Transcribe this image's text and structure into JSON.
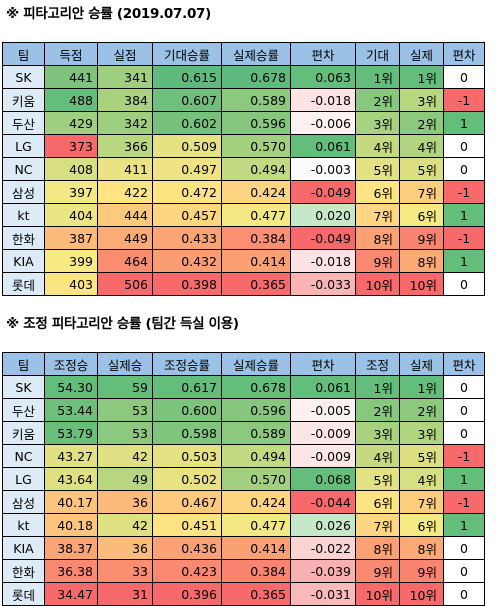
{
  "table1": {
    "title": "※ 피타고리안 승률 (2019.07.07)",
    "headers": [
      "팀",
      "득점",
      "실점",
      "기대승률",
      "실제승률",
      "편차",
      "기대",
      "실제",
      "편차"
    ],
    "rows": [
      [
        "SK",
        "441",
        "341",
        "0.615",
        "0.678",
        "0.063",
        "1위",
        "1위",
        "0"
      ],
      [
        "키움",
        "488",
        "384",
        "0.607",
        "0.589",
        "-0.018",
        "2위",
        "3위",
        "-1"
      ],
      [
        "두산",
        "429",
        "342",
        "0.602",
        "0.596",
        "-0.006",
        "3위",
        "2위",
        "1"
      ],
      [
        "LG",
        "373",
        "366",
        "0.509",
        "0.570",
        "0.061",
        "4위",
        "4위",
        "0"
      ],
      [
        "NC",
        "408",
        "411",
        "0.497",
        "0.494",
        "-0.003",
        "5위",
        "5위",
        "0"
      ],
      [
        "삼성",
        "397",
        "422",
        "0.472",
        "0.424",
        "-0.049",
        "6위",
        "7위",
        "-1"
      ],
      [
        "kt",
        "404",
        "444",
        "0.457",
        "0.477",
        "0.020",
        "7위",
        "6위",
        "1"
      ],
      [
        "한화",
        "387",
        "449",
        "0.433",
        "0.384",
        "-0.049",
        "8위",
        "9위",
        "-1"
      ],
      [
        "KIA",
        "399",
        "464",
        "0.432",
        "0.414",
        "-0.018",
        "9위",
        "8위",
        "1"
      ],
      [
        "롯데",
        "403",
        "506",
        "0.398",
        "0.365",
        "-0.033",
        "10위",
        "10위",
        "0"
      ]
    ],
    "colors": [
      [
        "#ddebf7",
        "#7fc47e",
        "#9fd07f",
        "#5fba7d",
        "#5fba7d",
        "#63be7b",
        "#63be7b",
        "#63be7b",
        "#ffffff"
      ],
      [
        "#ddebf7",
        "#63be7b",
        "#a9d27f",
        "#6ec07c",
        "#8cc87e",
        "#fde3e3",
        "#88c77e",
        "#b9d780",
        "#f8696b"
      ],
      [
        "#ddebf7",
        "#9fd07f",
        "#9dcf7f",
        "#76c27c",
        "#86c67d",
        "#fdf2f2",
        "#a6d17f",
        "#8cc87e",
        "#63be7b"
      ],
      [
        "#ddebf7",
        "#f8696b",
        "#b9d780",
        "#e6e283",
        "#a3d07f",
        "#63be7b",
        "#c4da81",
        "#b1d480",
        "#ffffff"
      ],
      [
        "#ddebf7",
        "#d6df82",
        "#eae283",
        "#f0e383",
        "#c2da81",
        "#fcfcff",
        "#e2e183",
        "#dbdf82",
        "#ffffff"
      ],
      [
        "#ddebf7",
        "#f2e884",
        "#fee482",
        "#fee382",
        "#fed480",
        "#f8696b",
        "#fee382",
        "#fdcd7e",
        "#f8696b"
      ],
      [
        "#ddebf7",
        "#ede583",
        "#fdc97d",
        "#fed680",
        "#f3e884",
        "#c6e7c8",
        "#fed580",
        "#f5e984",
        "#63be7b"
      ],
      [
        "#ddebf7",
        "#fcbb7b",
        "#fbab76",
        "#fba574",
        "#fa8f72",
        "#f8696b",
        "#fba174",
        "#f98470",
        "#f8696b"
      ],
      [
        "#ddebf7",
        "#f9e984",
        "#f98c71",
        "#fa9d73",
        "#fba073",
        "#fde3e3",
        "#f98971",
        "#fbaa76",
        "#63be7b"
      ],
      [
        "#ddebf7",
        "#fbe583",
        "#f8696b",
        "#f8696b",
        "#f8696b",
        "#fab4b4",
        "#f8696b",
        "#f8696b",
        "#ffffff"
      ]
    ]
  },
  "table2": {
    "title": "※ 조정 피타고리안 승률 (팀간 득실 이용)",
    "headers": [
      "팀",
      "조정승",
      "실제승",
      "조정승률",
      "실제승률",
      "편차",
      "조정",
      "실제",
      "편차"
    ],
    "rows": [
      [
        "SK",
        "54.30",
        "59",
        "0.617",
        "0.678",
        "0.061",
        "1위",
        "1위",
        "0"
      ],
      [
        "두산",
        "53.44",
        "53",
        "0.600",
        "0.596",
        "-0.005",
        "2위",
        "2위",
        "0"
      ],
      [
        "키움",
        "53.79",
        "53",
        "0.598",
        "0.589",
        "-0.009",
        "3위",
        "3위",
        "0"
      ],
      [
        "NC",
        "43.27",
        "42",
        "0.503",
        "0.494",
        "-0.009",
        "4위",
        "5위",
        "-1"
      ],
      [
        "LG",
        "43.64",
        "49",
        "0.502",
        "0.570",
        "0.068",
        "5위",
        "4위",
        "1"
      ],
      [
        "삼성",
        "40.17",
        "36",
        "0.467",
        "0.424",
        "-0.044",
        "6위",
        "7위",
        "-1"
      ],
      [
        "kt",
        "40.18",
        "42",
        "0.451",
        "0.477",
        "0.026",
        "7위",
        "6위",
        "1"
      ],
      [
        "KIA",
        "38.37",
        "36",
        "0.436",
        "0.414",
        "-0.022",
        "8위",
        "8위",
        "0"
      ],
      [
        "한화",
        "36.38",
        "33",
        "0.423",
        "0.384",
        "-0.039",
        "9위",
        "9위",
        "0"
      ],
      [
        "롯데",
        "34.47",
        "31",
        "0.396",
        "0.365",
        "-0.031",
        "10위",
        "10위",
        "0"
      ]
    ],
    "colors": [
      [
        "#ddebf7",
        "#63be7b",
        "#63be7b",
        "#63be7b",
        "#63be7b",
        "#63be7b",
        "#63be7b",
        "#63be7b",
        "#ffffff"
      ],
      [
        "#ddebf7",
        "#6cc07c",
        "#8cc87e",
        "#7cc47c",
        "#86c67d",
        "#fdf0f0",
        "#88c77e",
        "#8cc87e",
        "#ffffff"
      ],
      [
        "#ddebf7",
        "#68bf7c",
        "#8cc87e",
        "#7fc57d",
        "#8cc87e",
        "#fce6e6",
        "#a6d17f",
        "#b1d480",
        "#ffffff"
      ],
      [
        "#ddebf7",
        "#e1e183",
        "#dfe082",
        "#e6e283",
        "#c2da81",
        "#fce6e6",
        "#c4da81",
        "#dbdf82",
        "#f8696b"
      ],
      [
        "#ddebf7",
        "#dfe082",
        "#b8d680",
        "#e8e283",
        "#a3d07f",
        "#63be7b",
        "#e2e183",
        "#d6df82",
        "#63be7b"
      ],
      [
        "#ddebf7",
        "#fdc47d",
        "#fdbb7b",
        "#fdc97d",
        "#fed480",
        "#f8696b",
        "#fee382",
        "#fdcd7e",
        "#f8696b"
      ],
      [
        "#ddebf7",
        "#fdc47d",
        "#dfe082",
        "#fee382",
        "#f3e884",
        "#c6e7c8",
        "#fed580",
        "#f5e984",
        "#63be7b"
      ],
      [
        "#ddebf7",
        "#fba474",
        "#fbbb7b",
        "#fba274",
        "#fba073",
        "#fbd3d3",
        "#fba174",
        "#fbaa76",
        "#ffffff"
      ],
      [
        "#ddebf7",
        "#f98a71",
        "#f98e71",
        "#f98a71",
        "#f98470",
        "#f9b0b1",
        "#f98971",
        "#f98470",
        "#ffffff"
      ],
      [
        "#ddebf7",
        "#f8696b",
        "#f8696b",
        "#f8696b",
        "#f8696b",
        "#fab9ba",
        "#f8696b",
        "#f8696b",
        "#ffffff"
      ]
    ]
  }
}
